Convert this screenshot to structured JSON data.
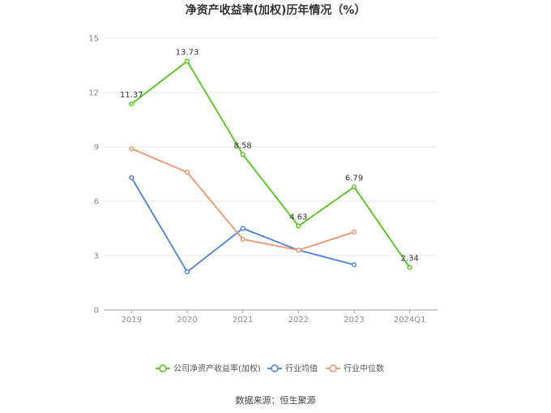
{
  "chart_data": {
    "type": "line",
    "title": "净资产收益率(加权)历年情况（%）",
    "xlabel": "",
    "ylabel": "",
    "categories": [
      "2019",
      "2020",
      "2021",
      "2022",
      "2023",
      "2024Q1"
    ],
    "ylim": [
      0,
      15
    ],
    "yticks": [
      0,
      3,
      6,
      9,
      12,
      15
    ],
    "grid": true,
    "legend_position": "bottom",
    "series": [
      {
        "name": "公司净资产收益率(加权)",
        "color": "#52c41a",
        "values": [
          11.37,
          13.73,
          8.58,
          4.63,
          6.79,
          2.34
        ],
        "labels": [
          "11.37",
          "13.73",
          "8.58",
          "4.63",
          "6.79",
          "2.34"
        ]
      },
      {
        "name": "行业均值",
        "color": "#4a7fe0",
        "values": [
          7.3,
          2.1,
          4.5,
          3.3,
          2.5,
          null
        ]
      },
      {
        "name": "行业中位数",
        "color": "#f0936c",
        "values": [
          8.9,
          7.6,
          3.9,
          3.3,
          4.3,
          null
        ]
      }
    ]
  },
  "source": "数据来源：恒生聚源"
}
